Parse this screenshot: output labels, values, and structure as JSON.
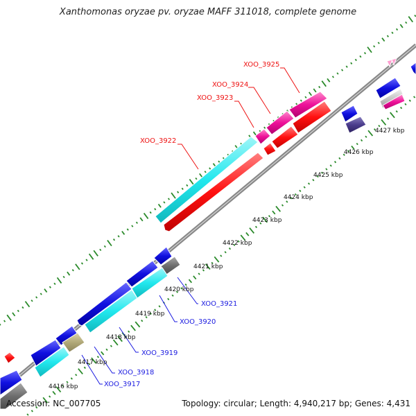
{
  "title": "Xanthomonas oryzae pv. oryzae MAFF 311018, complete genome",
  "footer": {
    "accession": "Accession: NC_007705",
    "topology": "Topology: circular; Length: 4,940,217 bp; Genes: 4,431"
  },
  "scale_labels": [
    "4416 kbp",
    "4417 kbp",
    "4418 kbp",
    "4419 kbp",
    "4420 kbp",
    "4421 kbp",
    "4422 kbp",
    "4423 kbp",
    "4424 kbp",
    "4425 kbp",
    "4426 kbp",
    "4427 kbp"
  ],
  "gene_labels_forward": [
    "XOO_3922",
    "XOO_3923",
    "XOO_3924",
    "XOO_3925"
  ],
  "gene_labels_reverse": [
    "XOO_3917",
    "XOO_3918",
    "XOO_3919",
    "XOO_3920",
    "XOO_3921"
  ],
  "colors": {
    "red_label": "#ee1111",
    "blue_label": "#1a1ae0",
    "cyan_gene": "#22e8ee",
    "red_gene": "#ff1010",
    "blue_gene": "#1010e0",
    "magenta_gene": "#ee1199",
    "grey_gene": "#6e6e6e",
    "olive_gene": "#b0a878",
    "navy_gene": "#4a3c8c",
    "backbone": "#8a8a8a",
    "gc_tick": "#2a8a2a"
  }
}
